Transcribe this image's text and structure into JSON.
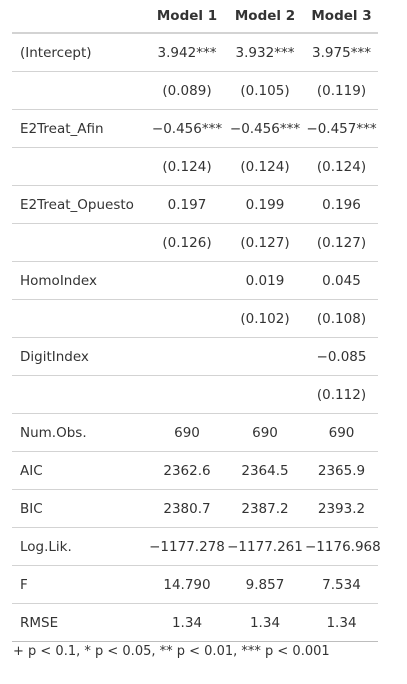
{
  "table": {
    "headers": [
      "",
      "Model 1",
      "Model 2",
      "Model 3"
    ],
    "rows": [
      {
        "label": "(Intercept)",
        "values": [
          "3.942***",
          "3.932***",
          "3.975***"
        ]
      },
      {
        "label": "",
        "values": [
          "(0.089)",
          "(0.105)",
          "(0.119)"
        ]
      },
      {
        "label": "E2Treat_Afin",
        "values": [
          "−0.456***",
          "−0.456***",
          "−0.457***"
        ]
      },
      {
        "label": "",
        "values": [
          "(0.124)",
          "(0.124)",
          "(0.124)"
        ]
      },
      {
        "label": "E2Treat_Opuesto",
        "values": [
          "0.197",
          "0.199",
          "0.196"
        ]
      },
      {
        "label": "",
        "values": [
          "(0.126)",
          "(0.127)",
          "(0.127)"
        ]
      },
      {
        "label": "HomoIndex",
        "values": [
          "",
          "0.019",
          "0.045"
        ]
      },
      {
        "label": "",
        "values": [
          "",
          "(0.102)",
          "(0.108)"
        ]
      },
      {
        "label": "DigitIndex",
        "values": [
          "",
          "",
          "−0.085"
        ]
      },
      {
        "label": "",
        "values": [
          "",
          "",
          "(0.112)"
        ]
      },
      {
        "label": "Num.Obs.",
        "values": [
          "690",
          "690",
          "690"
        ]
      },
      {
        "label": "AIC",
        "values": [
          "2362.6",
          "2364.5",
          "2365.9"
        ]
      },
      {
        "label": "BIC",
        "values": [
          "2380.7",
          "2387.2",
          "2393.2"
        ]
      },
      {
        "label": "Log.Lik.",
        "values": [
          "−1177.278",
          "−1177.261",
          "−1176.968"
        ]
      },
      {
        "label": "F",
        "values": [
          "14.790",
          "9.857",
          "7.534"
        ]
      },
      {
        "label": "RMSE",
        "values": [
          "1.34",
          "1.34",
          "1.34"
        ]
      }
    ],
    "footnote": "+ p < 0.1, * p < 0.05, ** p < 0.01, *** p < 0.001"
  }
}
